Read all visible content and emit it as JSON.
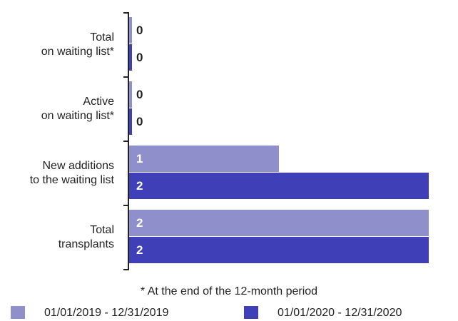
{
  "chart_data": {
    "type": "barh",
    "categories": [
      "Total\non waiting list*",
      "Active\non waiting list*",
      "New additions\nto the waiting list",
      "Total\ntransplants"
    ],
    "series": [
      {
        "name": "01/01/2019 - 12/31/2019",
        "color": "#8f8fcc",
        "values": [
          0,
          0,
          1,
          2
        ]
      },
      {
        "name": "01/01/2020 - 12/31/2020",
        "color": "#3f3fb8",
        "values": [
          0,
          0,
          2,
          2
        ]
      }
    ],
    "xlim": [
      0,
      2
    ],
    "footnote": "* At the end of the 12-month period",
    "legend": "bottom"
  }
}
